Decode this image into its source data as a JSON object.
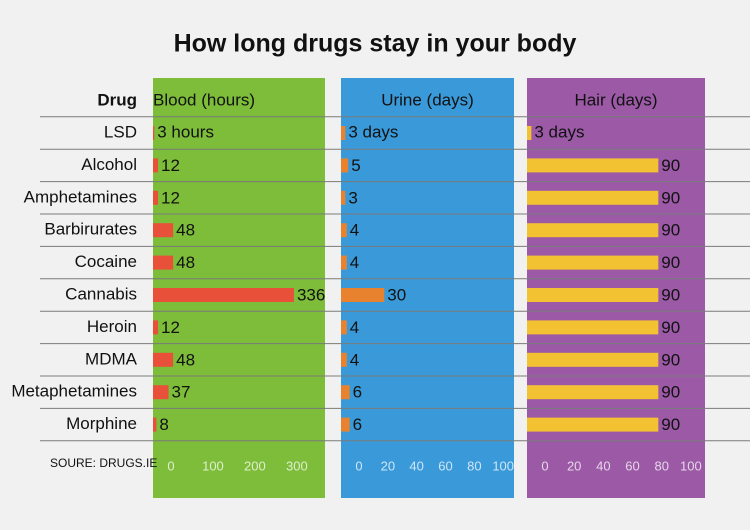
{
  "chart_data": {
    "type": "bar",
    "title": "How long drugs stay in your body",
    "category_label": "Drug",
    "source": "SOURE: DRUGS.IE",
    "categories": [
      "LSD",
      "Alcohol",
      "Amphetamines",
      "Barbirurates",
      "Cocaine",
      "Cannabis",
      "Heroin",
      "MDMA",
      "Metaphetamines",
      "Morphine"
    ],
    "series": [
      {
        "name": "Blood (hours)",
        "color": "#e8503a",
        "background": "#7dbd3a",
        "values": [
          3,
          12,
          12,
          48,
          48,
          336,
          12,
          48,
          37,
          8
        ],
        "value_labels": [
          "3 hours",
          "12",
          "12",
          "48",
          "48",
          "336",
          "12",
          "48",
          "37",
          "8"
        ],
        "xlim": [
          0,
          410
        ],
        "xticks": [
          0,
          100,
          200,
          300
        ]
      },
      {
        "name": "Urine (days)",
        "color": "#e8822f",
        "background": "#3a9ad9",
        "values": [
          3,
          5,
          3,
          4,
          4,
          30,
          4,
          4,
          6,
          6
        ],
        "value_labels": [
          "3 days",
          "5",
          "3",
          "4",
          "4",
          "30",
          "4",
          "4",
          "6",
          "6"
        ],
        "xlim": [
          0,
          120
        ],
        "xticks": [
          0,
          20,
          40,
          60,
          80,
          100
        ]
      },
      {
        "name": "Hair (days)",
        "color": "#f2c233",
        "background": "#9b59a6",
        "values": [
          3,
          90,
          90,
          90,
          90,
          90,
          90,
          90,
          90,
          90
        ],
        "value_labels": [
          "3 days",
          "90",
          "90",
          "90",
          "90",
          "90",
          "90",
          "90",
          "90",
          "90"
        ],
        "xlim": [
          0,
          122
        ],
        "xticks": [
          0,
          20,
          40,
          60,
          80,
          100
        ]
      }
    ]
  }
}
